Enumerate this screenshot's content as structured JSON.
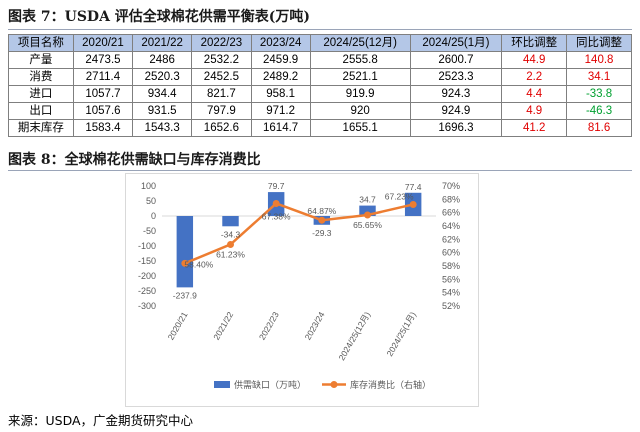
{
  "table_caption": "图表 7：USDA 评估全球棉花供需平衡表(万吨)",
  "table": {
    "headers": [
      "项目名称",
      "2020/21",
      "2021/22",
      "2022/23",
      "2023/24",
      "2024/25(12月)",
      "2024/25(1月)",
      "环比调整",
      "同比调整"
    ],
    "rows": [
      {
        "cells": [
          "产量",
          "2473.5",
          "2486",
          "2532.2",
          "2459.9",
          "2555.8",
          "2600.7",
          "44.9",
          "140.8"
        ]
      },
      {
        "cells": [
          "消费",
          "2711.4",
          "2520.3",
          "2452.5",
          "2489.2",
          "2521.1",
          "2523.3",
          "2.2",
          "34.1"
        ]
      },
      {
        "cells": [
          "进口",
          "1057.7",
          "934.4",
          "821.7",
          "958.1",
          "919.9",
          "924.3",
          "4.4",
          "-33.8"
        ]
      },
      {
        "cells": [
          "出口",
          "1057.6",
          "931.5",
          "797.9",
          "971.2",
          "920",
          "924.9",
          "4.9",
          "-46.3"
        ]
      },
      {
        "cells": [
          "期末库存",
          "1583.4",
          "1543.3",
          "1652.6",
          "1614.7",
          "1655.1",
          "1696.3",
          "41.2",
          "81.6"
        ]
      }
    ]
  },
  "chart_caption": "图表 8：全球棉花供需缺口与库存消费比",
  "chart_data": {
    "type": "bar",
    "categories": [
      "2020/21",
      "2021/22",
      "2022/23",
      "2023/24",
      "2024/25(12月)",
      "2024/25(1月)"
    ],
    "series": [
      {
        "name": "供需缺口（万吨）",
        "type": "bar",
        "axis": "left",
        "values": [
          -237.9,
          -34.3,
          79.7,
          -29.3,
          34.7,
          77.4
        ],
        "labels": [
          "-237.9",
          "-34.3",
          "79.7",
          "-29.3",
          "34.7",
          "77.4"
        ]
      },
      {
        "name": "库存消费比（右轴）",
        "type": "line",
        "axis": "right",
        "values": [
          58.4,
          61.23,
          67.38,
          64.87,
          65.65,
          67.23
        ],
        "labels": [
          "58.40%",
          "61.23%",
          "67.38%",
          "64.87%",
          "65.65%",
          "67.23%"
        ]
      }
    ],
    "y_left": {
      "min": -300,
      "max": 100,
      "step": 50,
      "ticks": [
        "100",
        "50",
        "0",
        "-50",
        "-100",
        "-150",
        "-200",
        "-250",
        "-300"
      ]
    },
    "y_right": {
      "min": 52,
      "max": 70,
      "step": 2,
      "ticks": [
        "70%",
        "68%",
        "66%",
        "64%",
        "62%",
        "60%",
        "58%",
        "56%",
        "54%",
        "52%"
      ]
    },
    "legend_position": "bottom",
    "grid": false,
    "colors": {
      "bar": "#4472c4",
      "line": "#ed7d31"
    }
  },
  "source_note": "来源：USDA，广金期货研究中心"
}
